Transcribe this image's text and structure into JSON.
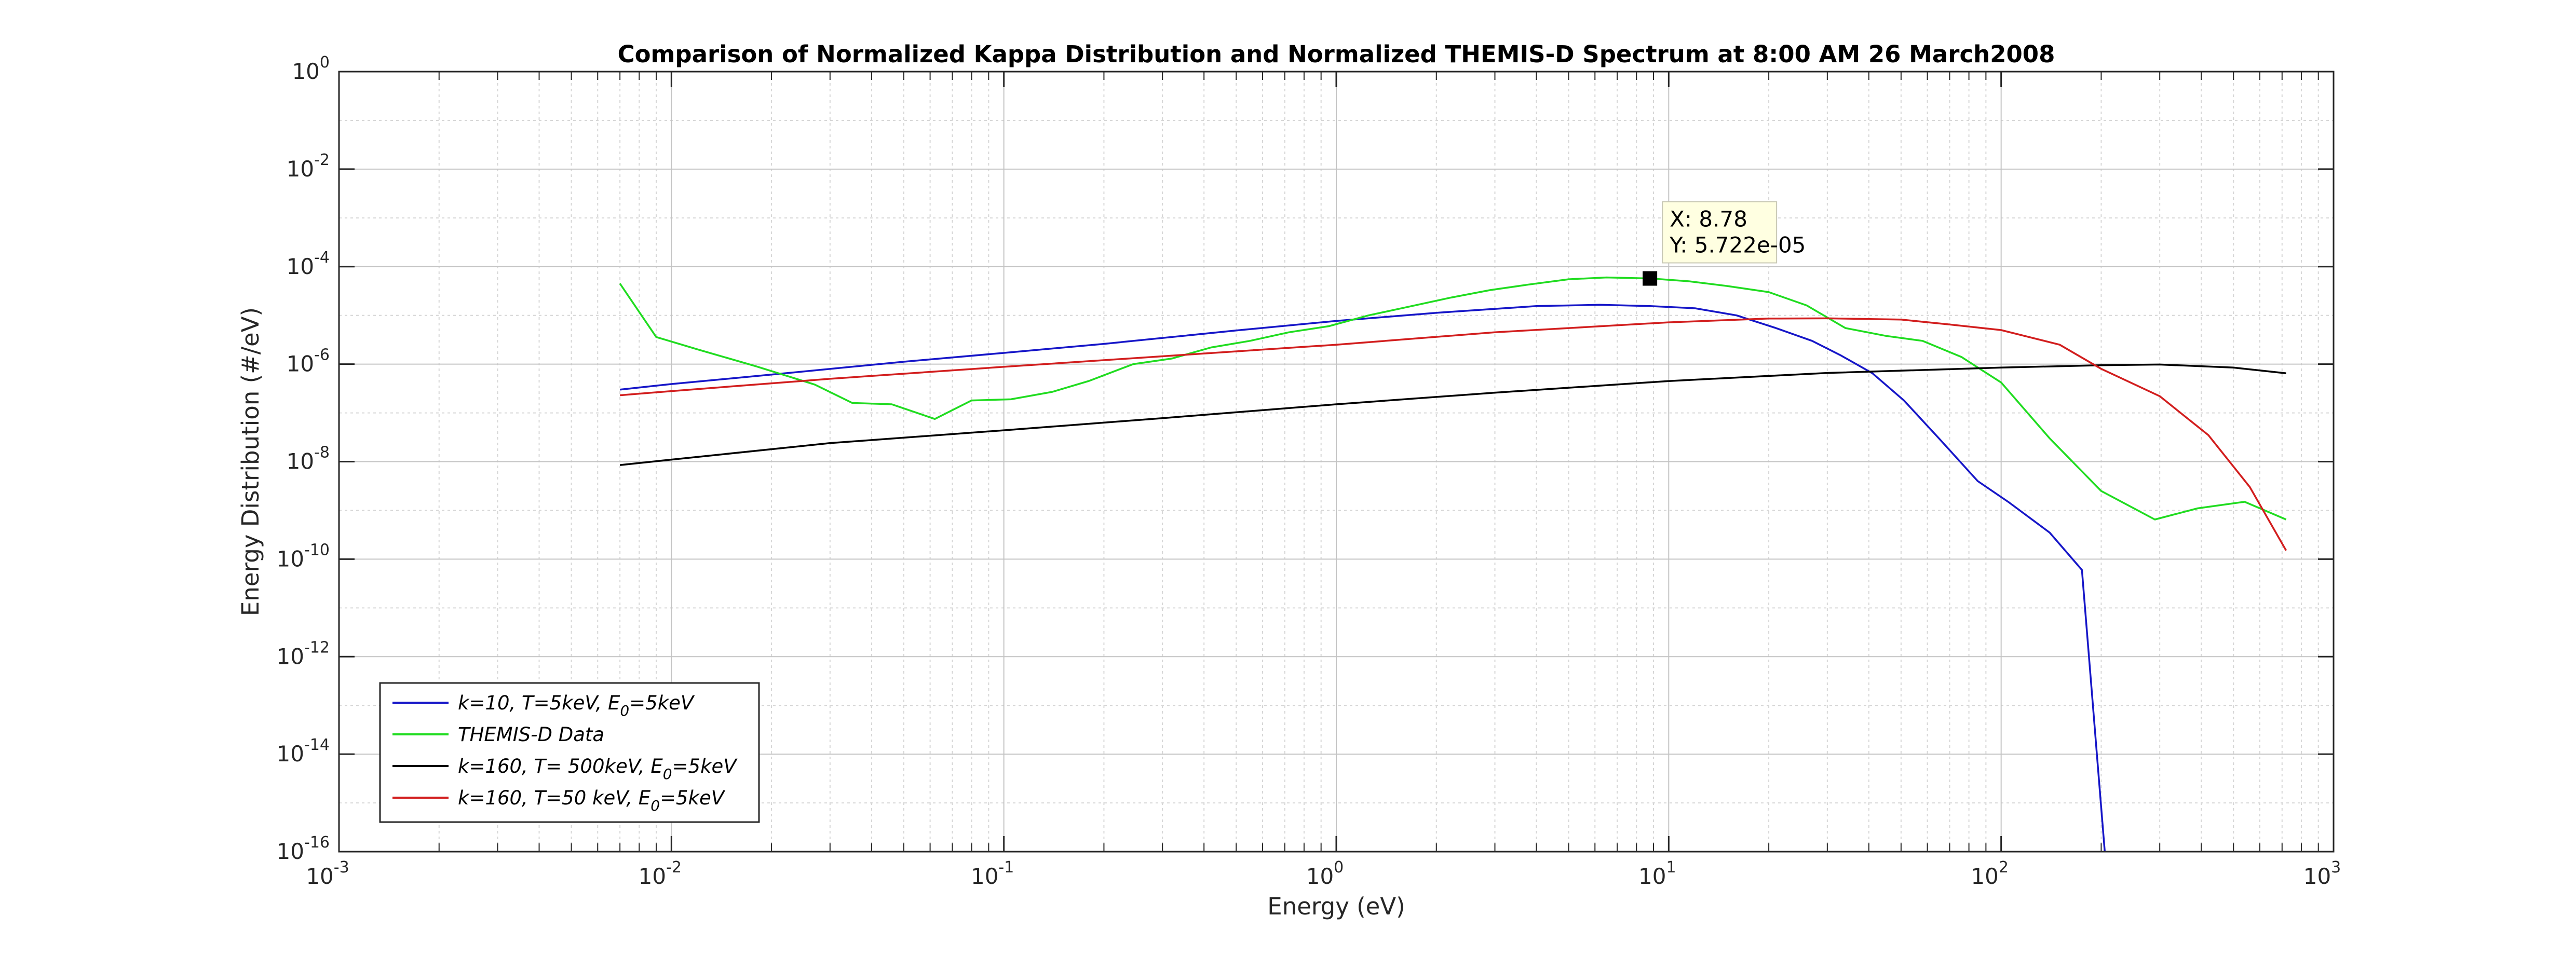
{
  "chart_data": {
    "type": "line",
    "title": "Comparison of Normalized Kappa Distribution and Normalized THEMIS-D Spectrum at 8:00 AM 26 March2008",
    "xlabel": "Energy (eV)",
    "ylabel": "Energy Distribution (#/eV)",
    "xscale": "log",
    "yscale": "log",
    "xlim": [
      0.001,
      1000
    ],
    "ylim": [
      1e-16,
      1
    ],
    "grid": true,
    "legend_position": "bottom-left",
    "x_ticks": [
      {
        "base": "10",
        "exp": "-3"
      },
      {
        "base": "10",
        "exp": "-2"
      },
      {
        "base": "10",
        "exp": "-1"
      },
      {
        "base": "10",
        "exp": "0"
      },
      {
        "base": "10",
        "exp": "1"
      },
      {
        "base": "10",
        "exp": "2"
      },
      {
        "base": "10",
        "exp": "3"
      }
    ],
    "y_ticks": [
      {
        "base": "10",
        "exp": "-16"
      },
      {
        "base": "10",
        "exp": "-14"
      },
      {
        "base": "10",
        "exp": "-12"
      },
      {
        "base": "10",
        "exp": "-10"
      },
      {
        "base": "10",
        "exp": "-8"
      },
      {
        "base": "10",
        "exp": "-6"
      },
      {
        "base": "10",
        "exp": "-4"
      },
      {
        "base": "10",
        "exp": "-2"
      },
      {
        "base": "10",
        "exp": "0"
      }
    ],
    "series": [
      {
        "legend": {
          "pre": "k=10, T=5keV, E",
          "sub": "0",
          "post": "=5keV"
        },
        "color": "#1616c8",
        "points": [
          [
            0.007,
            3e-07
          ],
          [
            0.01,
            3.9e-07
          ],
          [
            0.02,
            6.1e-07
          ],
          [
            0.05,
            1.12e-06
          ],
          [
            0.1,
            1.7e-06
          ],
          [
            0.2,
            2.6e-06
          ],
          [
            0.5,
            4.9e-06
          ],
          [
            1,
            7.7e-06
          ],
          [
            2,
            1.13e-05
          ],
          [
            4,
            1.55e-05
          ],
          [
            6.2,
            1.65e-05
          ],
          [
            8.78,
            1.55e-05
          ],
          [
            12,
            1.4e-05
          ],
          [
            16,
            1e-05
          ],
          [
            21,
            5.5e-06
          ],
          [
            27,
            3e-06
          ],
          [
            33,
            1.5e-06
          ],
          [
            41,
            6.5e-07
          ],
          [
            51,
            1.8e-07
          ],
          [
            65,
            3e-08
          ],
          [
            85,
            4e-09
          ],
          [
            105,
            1.5e-09
          ],
          [
            140,
            3.5e-10
          ],
          [
            175,
            6e-11
          ],
          [
            205,
            1e-16
          ]
        ]
      },
      {
        "legend": {
          "pre": "THEMIS-D Data",
          "sub": "",
          "post": ""
        },
        "color": "#20dc20",
        "points": [
          [
            0.007,
            4.5e-05
          ],
          [
            0.009,
            3.6e-06
          ],
          [
            0.012,
            2e-06
          ],
          [
            0.018,
            9e-07
          ],
          [
            0.027,
            3.8e-07
          ],
          [
            0.035,
            1.6e-07
          ],
          [
            0.046,
            1.5e-07
          ],
          [
            0.062,
            7.5e-08
          ],
          [
            0.08,
            1.8e-07
          ],
          [
            0.105,
            1.9e-07
          ],
          [
            0.14,
            2.7e-07
          ],
          [
            0.18,
            4.5e-07
          ],
          [
            0.245,
            1e-06
          ],
          [
            0.32,
            1.3e-06
          ],
          [
            0.42,
            2.2e-06
          ],
          [
            0.55,
            3e-06
          ],
          [
            0.72,
            4.5e-06
          ],
          [
            0.95,
            6e-06
          ],
          [
            1.25,
            1e-05
          ],
          [
            1.65,
            1.5e-05
          ],
          [
            2.2,
            2.3e-05
          ],
          [
            2.9,
            3.3e-05
          ],
          [
            3.8,
            4.3e-05
          ],
          [
            5,
            5.5e-05
          ],
          [
            6.5,
            6e-05
          ],
          [
            8.78,
            5.72e-05
          ],
          [
            11.5,
            5e-05
          ],
          [
            15,
            4e-05
          ],
          [
            20,
            3e-05
          ],
          [
            26,
            1.6e-05
          ],
          [
            34,
            5.5e-06
          ],
          [
            45,
            3.8e-06
          ],
          [
            58,
            3e-06
          ],
          [
            76,
            1.4e-06
          ],
          [
            100,
            4.2e-07
          ],
          [
            140,
            3e-08
          ],
          [
            200,
            2.5e-09
          ],
          [
            290,
            6.5e-10
          ],
          [
            390,
            1.1e-09
          ],
          [
            540,
            1.5e-09
          ],
          [
            720,
            6.5e-10
          ]
        ]
      },
      {
        "legend": {
          "pre": "k=160, T= 500keV, E",
          "sub": "0",
          "post": "=5keV"
        },
        "color": "#000000",
        "points": [
          [
            0.007,
            8.5e-09
          ],
          [
            0.01,
            1.1e-08
          ],
          [
            0.03,
            2.4e-08
          ],
          [
            0.1,
            4.4e-08
          ],
          [
            0.3,
            7.8e-08
          ],
          [
            1,
            1.5e-07
          ],
          [
            3,
            2.6e-07
          ],
          [
            10,
            4.5e-07
          ],
          [
            30,
            6.6e-07
          ],
          [
            100,
            8.5e-07
          ],
          [
            200,
            9.5e-07
          ],
          [
            300,
            9.8e-07
          ],
          [
            500,
            8.5e-07
          ],
          [
            720,
            6.5e-07
          ]
        ]
      },
      {
        "legend": {
          "pre": "k=160, T=50 keV, E",
          "sub": "0",
          "post": "=5keV"
        },
        "color": "#d21e1e",
        "points": [
          [
            0.007,
            2.3e-07
          ],
          [
            0.01,
            2.8e-07
          ],
          [
            0.03,
            5e-07
          ],
          [
            0.1,
            8.8e-07
          ],
          [
            0.3,
            1.45e-06
          ],
          [
            1,
            2.5e-06
          ],
          [
            3,
            4.5e-06
          ],
          [
            10,
            7.2e-06
          ],
          [
            20,
            8.6e-06
          ],
          [
            30,
            8.7e-06
          ],
          [
            50,
            8.2e-06
          ],
          [
            70,
            6.5e-06
          ],
          [
            100,
            5e-06
          ],
          [
            150,
            2.5e-06
          ],
          [
            200,
            8e-07
          ],
          [
            300,
            2.2e-07
          ],
          [
            420,
            3.5e-08
          ],
          [
            560,
            3e-09
          ],
          [
            720,
            1.5e-10
          ]
        ]
      }
    ],
    "datatip": {
      "x": 8.78,
      "y": 5.722e-05,
      "line1": "X: 8.78",
      "line2": "Y: 5.722e-05"
    }
  }
}
